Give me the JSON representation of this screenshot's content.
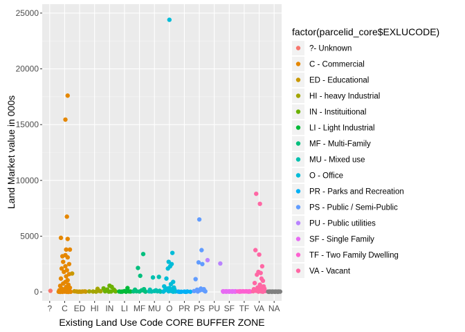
{
  "chart_data": {
    "type": "scatter",
    "xlabel": "Existing Land Use Code CORE BUFFER ZONE",
    "ylabel": "Land Market value in 000s",
    "ylim": [
      -800,
      25800
    ],
    "y_ticks": [
      0,
      5000,
      10000,
      15000,
      20000,
      25000
    ],
    "y_tick_labels": [
      "0",
      "5000",
      "10000",
      "15000",
      "20000",
      "25000"
    ],
    "categories": [
      "?",
      "C",
      "ED",
      "HI",
      "IN",
      "LI",
      "MF",
      "MU",
      "O",
      "PR",
      "PS",
      "PU",
      "SF",
      "TF",
      "VA",
      "NA"
    ],
    "x_tick_labels": [
      "?",
      "C",
      "ED",
      "HI",
      "IN",
      "LI",
      "MF",
      "MU",
      "O",
      "PR",
      "PS",
      "PU",
      "SF",
      "TF",
      "VA",
      "NA"
    ],
    "grid": true,
    "panel_background": "#ebebeb",
    "legend_position": "right",
    "legend": {
      "title": "factor(parcelid_core$EXLUCODE)",
      "entries": [
        {
          "label": "?- Unknown",
          "color": "#F8766D"
        },
        {
          "label": "C - Commercial",
          "color": "#E58700"
        },
        {
          "label": "ED - Educational",
          "color": "#C99800"
        },
        {
          "label": "HI - heavy Industrial",
          "color": "#A3A500"
        },
        {
          "label": "IN - Instituitional",
          "color": "#6BB100"
        },
        {
          "label": "LI - Light Industrial",
          "color": "#00BA38"
        },
        {
          "label": "MF - Multi-Family",
          "color": "#00BF7D"
        },
        {
          "label": "MU - Mixed use",
          "color": "#00C0AF"
        },
        {
          "label": "O - Office",
          "color": "#00BCD8"
        },
        {
          "label": "PR - Parks and Recreation",
          "color": "#00B0F6"
        },
        {
          "label": "PS - Public / Semi-Public",
          "color": "#619CFF"
        },
        {
          "label": "PU - Public utilities",
          "color": "#B983FF"
        },
        {
          "label": "SF - Single Family",
          "color": "#E76BF3"
        },
        {
          "label": "TF - Two Family Dwelling",
          "color": "#FD61D1"
        },
        {
          "label": "VA - Vacant",
          "color": "#FF67A4"
        }
      ]
    },
    "na_color": "#7F7F7F",
    "series": [
      {
        "name": "?- Unknown",
        "category": "?",
        "color": "#F8766D",
        "points": [
          [
            0.05,
            100
          ]
        ]
      },
      {
        "name": "C - Commercial",
        "category": "C",
        "color": "#E58700",
        "points": [
          [
            -0.25,
            4850
          ],
          [
            0.2,
            17600
          ],
          [
            0.05,
            15450
          ],
          [
            0.15,
            6750
          ],
          [
            0.2,
            4750
          ],
          [
            0.35,
            3800
          ],
          [
            0.1,
            3800
          ],
          [
            -0.15,
            3200
          ],
          [
            0.05,
            3300
          ],
          [
            0.2,
            3100
          ],
          [
            -0.1,
            2700
          ],
          [
            0.3,
            2500
          ],
          [
            0.05,
            2300
          ],
          [
            -0.2,
            2100
          ],
          [
            0.15,
            1950
          ],
          [
            -0.05,
            1800
          ],
          [
            0.3,
            1600
          ],
          [
            0.1,
            1400
          ],
          [
            -0.25,
            1200
          ],
          [
            0.2,
            1050
          ],
          [
            0.05,
            900
          ],
          [
            -0.1,
            750
          ],
          [
            0.25,
            650
          ],
          [
            -0.3,
            550
          ],
          [
            0.1,
            450
          ],
          [
            0.35,
            380
          ],
          [
            -0.2,
            300
          ],
          [
            0.0,
            250
          ],
          [
            0.2,
            200
          ],
          [
            -0.35,
            160
          ],
          [
            0.3,
            120
          ],
          [
            -0.1,
            90
          ],
          [
            0.1,
            70
          ],
          [
            -0.25,
            50
          ],
          [
            0.35,
            40
          ],
          [
            0.0,
            30
          ],
          [
            -0.4,
            20
          ],
          [
            0.4,
            15
          ],
          [
            0.15,
            10
          ],
          [
            -0.15,
            10
          ],
          [
            0.25,
            5
          ],
          [
            -0.3,
            5
          ]
        ]
      },
      {
        "name": "ED - Educational",
        "category": "ED",
        "color": "#C99800",
        "points": [
          [
            -0.5,
            1650
          ],
          [
            -0.35,
            60
          ],
          [
            -0.2,
            40
          ],
          [
            0.0,
            30
          ],
          [
            0.2,
            40
          ],
          [
            0.35,
            50
          ],
          [
            -0.1,
            20
          ],
          [
            0.1,
            20
          ],
          [
            0.4,
            30
          ]
        ]
      },
      {
        "name": "HI - heavy Industrial",
        "category": "HI",
        "color": "#A3A500",
        "points": [
          [
            -0.35,
            50
          ],
          [
            -0.1,
            40
          ],
          [
            0.1,
            30
          ],
          [
            0.3,
            100
          ],
          [
            0.2,
            280
          ],
          [
            0.4,
            60
          ]
        ]
      },
      {
        "name": "IN - Instituitional",
        "category": "IN",
        "color": "#6BB100",
        "points": [
          [
            -0.4,
            320
          ],
          [
            -0.2,
            120
          ],
          [
            0.0,
            560
          ],
          [
            0.15,
            450
          ],
          [
            0.3,
            200
          ],
          [
            -0.3,
            60
          ],
          [
            0.35,
            100
          ],
          [
            0.1,
            40
          ],
          [
            -0.05,
            30
          ],
          [
            0.4,
            50
          ],
          [
            -0.15,
            220
          ]
        ]
      },
      {
        "name": "LI - Light Industrial",
        "category": "LI",
        "color": "#00BA38",
        "points": [
          [
            -0.35,
            40
          ],
          [
            -0.15,
            30
          ],
          [
            0.0,
            80
          ],
          [
            0.2,
            350
          ],
          [
            0.3,
            50
          ],
          [
            0.4,
            40
          ],
          [
            0.1,
            20
          ],
          [
            -0.25,
            20
          ]
        ]
      },
      {
        "name": "MF - Multi-Family",
        "category": "MF",
        "color": "#00BF7D",
        "points": [
          [
            -0.1,
            2150
          ],
          [
            0.25,
            3400
          ],
          [
            0.05,
            1450
          ],
          [
            -0.3,
            200
          ],
          [
            0.15,
            150
          ],
          [
            0.35,
            80
          ],
          [
            -0.2,
            60
          ],
          [
            0.0,
            40
          ],
          [
            0.4,
            30
          ],
          [
            0.3,
            250
          ],
          [
            -0.4,
            50
          ]
        ]
      },
      {
        "name": "MU - Mixed use",
        "category": "MU",
        "color": "#00C0AF",
        "points": [
          [
            -0.3,
            200
          ],
          [
            -0.1,
            1300
          ],
          [
            0.1,
            150
          ],
          [
            0.3,
            1350
          ],
          [
            0.0,
            80
          ],
          [
            0.2,
            60
          ],
          [
            -0.2,
            40
          ],
          [
            0.4,
            30
          ],
          [
            0.35,
            100
          ],
          [
            -0.35,
            50
          ]
        ]
      },
      {
        "name": "O - Office",
        "category": "O",
        "color": "#00BCD8",
        "points": [
          [
            0.0,
            24400
          ],
          [
            0.2,
            3500
          ],
          [
            -0.05,
            2700
          ],
          [
            0.15,
            2500
          ],
          [
            -0.1,
            2100
          ],
          [
            0.05,
            2300
          ],
          [
            -0.2,
            1200
          ],
          [
            0.25,
            900
          ],
          [
            0.1,
            700
          ],
          [
            -0.35,
            500
          ],
          [
            0.3,
            400
          ],
          [
            0.0,
            350
          ],
          [
            -0.15,
            300
          ],
          [
            0.2,
            250
          ],
          [
            0.35,
            200
          ],
          [
            -0.3,
            150
          ],
          [
            0.05,
            100
          ],
          [
            0.15,
            80
          ],
          [
            -0.05,
            60
          ],
          [
            0.4,
            40
          ],
          [
            -0.4,
            30
          ],
          [
            0.25,
            20
          ]
        ]
      },
      {
        "name": "PR - Parks and Recreation",
        "category": "PR",
        "color": "#00B0F6",
        "points": [
          [
            -0.4,
            30
          ],
          [
            -0.2,
            20
          ],
          [
            0.0,
            30
          ],
          [
            0.2,
            40
          ],
          [
            0.4,
            20
          ],
          [
            -0.3,
            10
          ],
          [
            0.1,
            10
          ]
        ]
      },
      {
        "name": "PS - Public / Semi-Public",
        "category": "PS",
        "color": "#619CFF",
        "points": [
          [
            0.0,
            6500
          ],
          [
            0.15,
            3750
          ],
          [
            -0.05,
            2650
          ],
          [
            0.2,
            2500
          ],
          [
            -0.25,
            1150
          ],
          [
            0.1,
            300
          ],
          [
            0.3,
            250
          ],
          [
            -0.15,
            200
          ],
          [
            0.25,
            180
          ],
          [
            0.05,
            150
          ],
          [
            0.35,
            100
          ],
          [
            -0.35,
            80
          ],
          [
            0.4,
            50
          ],
          [
            -0.1,
            40
          ]
        ]
      },
      {
        "name": "PU - Public utilities",
        "category": "PU",
        "color": "#B983FF",
        "points": [
          [
            -0.45,
            2850
          ],
          [
            0.4,
            2550
          ]
        ]
      },
      {
        "name": "SF - Single Family",
        "category": "SF",
        "color": "#E76BF3",
        "points": [
          [
            -0.42,
            60
          ],
          [
            -0.35,
            50
          ],
          [
            -0.28,
            40
          ],
          [
            -0.21,
            60
          ],
          [
            -0.14,
            50
          ],
          [
            -0.07,
            40
          ],
          [
            0.0,
            60
          ],
          [
            0.07,
            50
          ],
          [
            0.14,
            40
          ],
          [
            0.21,
            60
          ],
          [
            0.28,
            50
          ],
          [
            0.35,
            40
          ],
          [
            0.42,
            60
          ],
          [
            -0.4,
            20
          ],
          [
            -0.2,
            20
          ],
          [
            0.0,
            20
          ],
          [
            0.2,
            20
          ],
          [
            0.4,
            20
          ]
        ]
      },
      {
        "name": "TF - Two Family Dwelling",
        "category": "TF",
        "color": "#FD61D1",
        "points": [
          [
            -0.42,
            50
          ],
          [
            -0.35,
            40
          ],
          [
            -0.28,
            60
          ],
          [
            -0.21,
            40
          ],
          [
            -0.14,
            50
          ],
          [
            -0.07,
            60
          ],
          [
            0.0,
            40
          ],
          [
            0.07,
            50
          ],
          [
            0.14,
            60
          ],
          [
            0.21,
            40
          ],
          [
            0.28,
            50
          ],
          [
            0.35,
            60
          ],
          [
            0.42,
            40
          ],
          [
            -0.3,
            20
          ],
          [
            0.3,
            20
          ]
        ]
      },
      {
        "name": "VA - Vacant",
        "category": "VA",
        "color": "#FF67A4",
        "points": [
          [
            -0.2,
            8800
          ],
          [
            0.05,
            7900
          ],
          [
            0.0,
            3350
          ],
          [
            -0.25,
            3750
          ],
          [
            0.2,
            2300
          ],
          [
            -0.05,
            1800
          ],
          [
            0.1,
            1700
          ],
          [
            -0.15,
            1550
          ],
          [
            0.15,
            1200
          ],
          [
            0.25,
            1000
          ],
          [
            -0.3,
            800
          ],
          [
            0.05,
            650
          ],
          [
            0.3,
            500
          ],
          [
            -0.1,
            400
          ],
          [
            0.1,
            350
          ],
          [
            0.35,
            300
          ],
          [
            -0.35,
            250
          ],
          [
            0.2,
            200
          ],
          [
            0.0,
            150
          ],
          [
            -0.2,
            100
          ],
          [
            0.4,
            80
          ],
          [
            -0.4,
            60
          ],
          [
            0.15,
            40
          ],
          [
            -0.05,
            30
          ],
          [
            0.25,
            20
          ]
        ]
      },
      {
        "name": "NA",
        "category": "NA",
        "color": "#7F7F7F",
        "points": [
          [
            -0.4,
            30
          ],
          [
            -0.3,
            40
          ],
          [
            -0.2,
            30
          ],
          [
            -0.1,
            40
          ],
          [
            0.0,
            30
          ],
          [
            0.1,
            40
          ],
          [
            0.2,
            30
          ],
          [
            0.3,
            40
          ],
          [
            0.4,
            30
          ],
          [
            -0.35,
            10
          ],
          [
            -0.15,
            10
          ],
          [
            0.05,
            10
          ],
          [
            0.25,
            10
          ]
        ]
      }
    ]
  }
}
